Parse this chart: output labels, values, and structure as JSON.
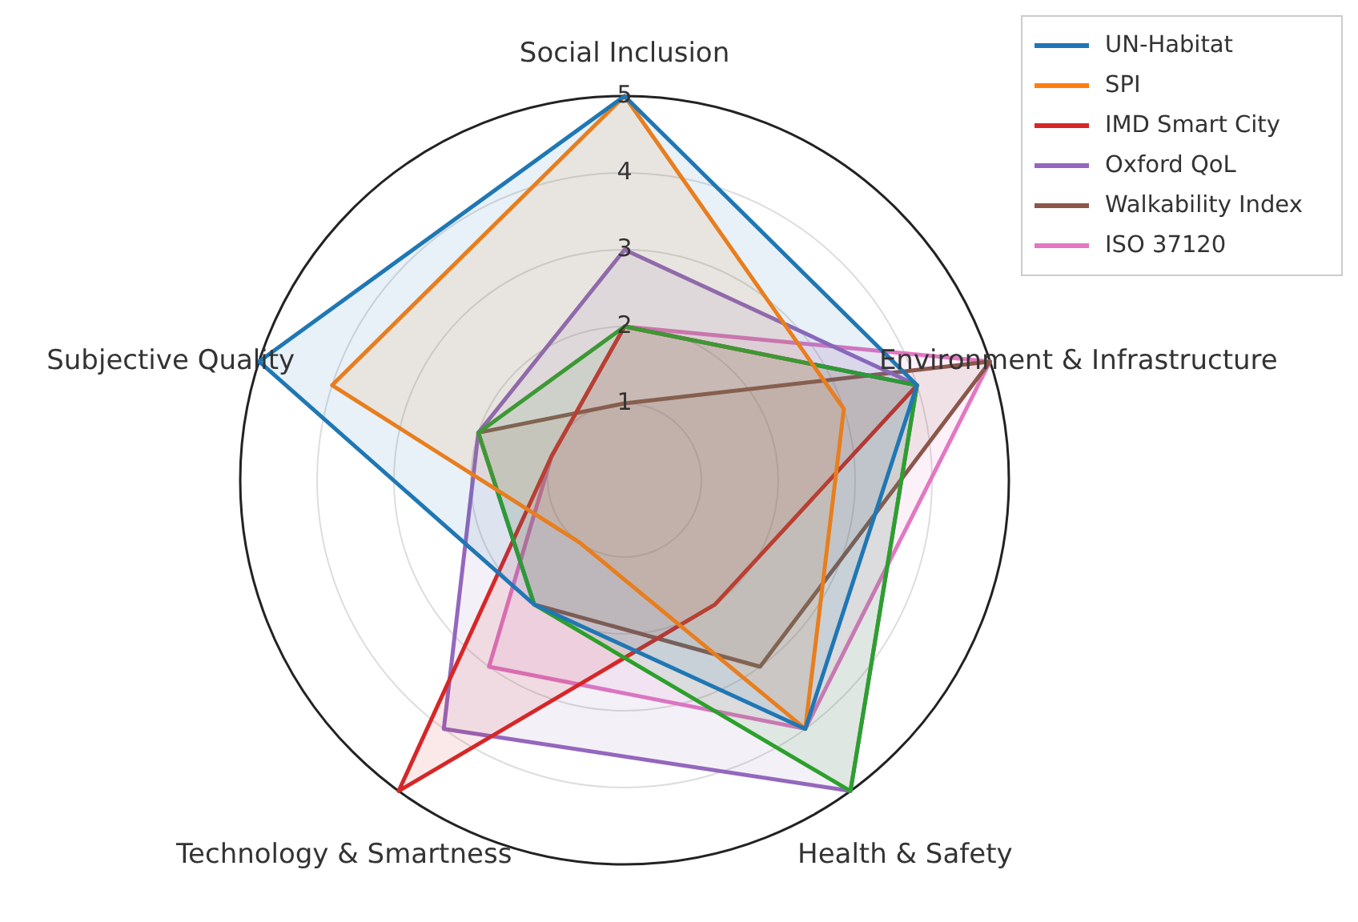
{
  "chart_data": {
    "type": "radar",
    "categories": [
      "Social Inclusion",
      "Environment & Infrastructure",
      "Health & Safety",
      "Technology & Smartness",
      "Subjective Quality"
    ],
    "ylim": [
      0,
      5
    ],
    "yticks": [
      1,
      2,
      3,
      4,
      5
    ],
    "grid": true,
    "legend": "top right",
    "marker": "none",
    "line_style": "solid",
    "series": [
      {
        "name": "UN-Habitat",
        "color": "#1f77b4",
        "values": [
          5,
          4,
          4,
          2,
          5
        ]
      },
      {
        "name": "SPI",
        "color": "#ff7f0e",
        "values": [
          5,
          3,
          4,
          1,
          4
        ]
      },
      {
        "color": "#2ca02c",
        "values": [
          2,
          4,
          5,
          2,
          2
        ]
      },
      {
        "name": "IMD Smart City",
        "color": "#d62728",
        "values": [
          2,
          4,
          2,
          5,
          1
        ]
      },
      {
        "name": "Oxford QoL",
        "color": "#9467bd",
        "values": [
          3,
          4,
          5,
          4,
          2
        ]
      },
      {
        "name": "Walkability Index",
        "color": "#8c564b",
        "values": [
          1,
          5,
          3,
          2,
          2
        ]
      },
      {
        "name": "ISO 37120",
        "color": "#e377c2",
        "values": [
          2,
          5,
          4,
          3,
          1
        ]
      }
    ]
  }
}
